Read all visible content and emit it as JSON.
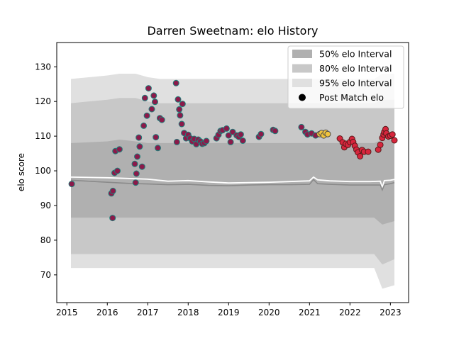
{
  "chart_data": {
    "type": "scatter",
    "title": "Darren Sweetnam: elo History",
    "xlabel": "",
    "ylabel": "elo score",
    "xlim": [
      2014.75,
      2023.45
    ],
    "ylim": [
      62,
      137
    ],
    "x_ticks": [
      2015,
      2016,
      2017,
      2018,
      2019,
      2020,
      2021,
      2022,
      2023
    ],
    "y_ticks": [
      70,
      80,
      90,
      100,
      110,
      120,
      130
    ],
    "grid": false,
    "legend_position": "top-right",
    "legend": [
      {
        "label": "50% elo Interval",
        "kind": "patch",
        "color": "#b0b0b0"
      },
      {
        "label": "80% elo Interval",
        "kind": "patch",
        "color": "#c8c8c8"
      },
      {
        "label": "95% elo Interval",
        "kind": "patch",
        "color": "#e0e0e0"
      },
      {
        "label": "Post Match elo",
        "kind": "marker",
        "color": "#000000"
      }
    ],
    "band_x": [
      2015.1,
      2016.0,
      2016.3,
      2016.7,
      2017.0,
      2017.3,
      2017.7,
      2018.0,
      2018.5,
      2019.0,
      2019.5,
      2020.0,
      2020.5,
      2020.9,
      2021.2,
      2021.5,
      2021.8,
      2022.0,
      2022.3,
      2022.6,
      2022.8,
      2023.1
    ],
    "band_95": {
      "lower": [
        72,
        72,
        72,
        72,
        72,
        72,
        72,
        72,
        72,
        72,
        72,
        72,
        72,
        72,
        72,
        72,
        72,
        72,
        72,
        72,
        66,
        67
      ],
      "upper": [
        126.5,
        127.5,
        128,
        128,
        127,
        126.5,
        126.5,
        126.5,
        126.5,
        126.5,
        126.5,
        126.5,
        126.5,
        126.5,
        126.5,
        126.5,
        126.5,
        126.5,
        126.5,
        126.5,
        128,
        128
      ]
    },
    "band_80": {
      "lower": [
        76,
        76,
        76,
        76,
        76,
        76,
        76,
        76,
        76,
        76,
        76,
        76,
        76,
        76,
        76,
        76,
        76,
        76,
        76,
        76,
        73,
        74.5
      ],
      "upper": [
        119.5,
        120.5,
        121,
        121,
        120,
        119.5,
        119.5,
        119.5,
        119.5,
        119.5,
        119.5,
        119.5,
        119.5,
        119.5,
        119.5,
        119.5,
        119.5,
        119.5,
        119.5,
        119.5,
        120.5,
        120.5
      ]
    },
    "band_50": {
      "lower": [
        86.5,
        86.5,
        86.5,
        86.5,
        86.5,
        86.5,
        86.5,
        86.5,
        86.5,
        86.5,
        86.5,
        86.5,
        86.5,
        86.5,
        86.5,
        86.5,
        86.5,
        86.5,
        86.5,
        86.5,
        84.5,
        85.5
      ],
      "upper": [
        108,
        108.5,
        109,
        108.5,
        108,
        108,
        108,
        108,
        108,
        108,
        108,
        108,
        108,
        108,
        108,
        108,
        108,
        108,
        108,
        108,
        109,
        109
      ]
    },
    "mean_line": {
      "x": [
        2015.1,
        2016.0,
        2016.5,
        2017.0,
        2017.5,
        2018.0,
        2018.5,
        2019.0,
        2019.5,
        2020.0,
        2020.5,
        2021.0,
        2021.1,
        2021.2,
        2021.5,
        2022.0,
        2022.5,
        2022.75,
        2022.8,
        2022.85,
        2023.0,
        2023.1
      ],
      "y": [
        98.2,
        98.0,
        97.8,
        97.6,
        97.0,
        97.2,
        96.8,
        96.5,
        96.6,
        96.7,
        96.9,
        97.1,
        98.2,
        97.4,
        97.1,
        96.9,
        96.9,
        97.0,
        95.2,
        97.2,
        97.3,
        97.5
      ]
    },
    "median_line": {
      "x": [
        2015.1,
        2016.0,
        2016.5,
        2017.0,
        2017.5,
        2018.0,
        2018.5,
        2019.0,
        2019.5,
        2020.0,
        2020.5,
        2021.0,
        2021.1,
        2021.2,
        2021.5,
        2022.0,
        2022.5,
        2022.75,
        2022.8,
        2022.85,
        2023.0,
        2023.1
      ],
      "y": [
        97.3,
        96.7,
        96.4,
        96.2,
        96.0,
        96.1,
        95.8,
        95.7,
        95.9,
        96.0,
        96.0,
        96.1,
        97.5,
        96.3,
        96.1,
        95.9,
        95.9,
        95.9,
        94.5,
        96.0,
        96.3,
        96.6
      ]
    },
    "series": [
      {
        "color": "#8b1a4a",
        "edge": "#1f7f7a",
        "x": [
          2015.12,
          2016.1,
          2016.13,
          2016.14,
          2016.18,
          2016.2,
          2016.25,
          2016.3,
          2016.68,
          2016.7,
          2016.72,
          2016.74,
          2016.78,
          2016.8,
          2016.86,
          2016.9,
          2016.93,
          2016.98,
          2017.02,
          2017.1,
          2017.15,
          2017.18,
          2017.2,
          2017.25,
          2017.3,
          2017.35,
          2017.7,
          2017.72,
          2017.75,
          2017.78,
          2017.8,
          2017.84,
          2017.86,
          2017.9,
          2017.95,
          2018.0,
          2018.05,
          2018.1,
          2018.15,
          2018.2,
          2018.25,
          2018.3,
          2018.35,
          2018.4,
          2018.45,
          2018.7,
          2018.75,
          2018.8,
          2018.85,
          2018.95,
          2019.0,
          2019.05,
          2019.1,
          2019.2,
          2019.25,
          2019.3,
          2019.35,
          2019.75,
          2019.8,
          2020.1,
          2020.15,
          2020.8,
          2020.9,
          2020.95,
          2021.05,
          2021.15
        ],
        "y": [
          96.2,
          93.5,
          86.4,
          94.2,
          99.4,
          105.7,
          100.0,
          106.2,
          102.0,
          96.6,
          99.2,
          104.1,
          109.6,
          107.0,
          101.2,
          113.0,
          121.0,
          115.9,
          123.8,
          117.8,
          121.7,
          119.9,
          109.7,
          106.6,
          115.2,
          114.7,
          125.3,
          108.3,
          120.6,
          117.7,
          116.0,
          113.5,
          119.3,
          110.9,
          109.4,
          110.4,
          109.4,
          108.5,
          109.2,
          107.7,
          109.0,
          108.5,
          107.8,
          108.0,
          108.6,
          109.4,
          110.4,
          111.5,
          111.7,
          112.2,
          110.2,
          108.3,
          111.2,
          110.2,
          109.8,
          110.5,
          108.7,
          109.8,
          110.6,
          111.8,
          111.5,
          112.6,
          111.2,
          110.5,
          110.8,
          110.2
        ]
      },
      {
        "color": "#f0c33c",
        "edge": "#4a4a4a",
        "x": [
          2021.25,
          2021.3,
          2021.35,
          2021.4,
          2021.45
        ],
        "y": [
          110.6,
          110.9,
          110.2,
          111.0,
          110.6
        ]
      },
      {
        "color": "#d7263d",
        "edge": "#5a1a1a",
        "x": [
          2021.75,
          2021.82,
          2021.86,
          2021.9,
          2021.95,
          2022.0,
          2022.05,
          2022.08,
          2022.12,
          2022.16,
          2022.2,
          2022.25,
          2022.3,
          2022.35,
          2022.45,
          2022.7,
          2022.75,
          2022.8,
          2022.83,
          2022.85,
          2022.88,
          2022.9,
          2022.95,
          2023.0,
          2023.05,
          2023.1
        ],
        "y": [
          109.3,
          108.2,
          106.8,
          107.8,
          107.5,
          108.3,
          109.2,
          108.3,
          107.2,
          106.1,
          105.3,
          104.2,
          106.0,
          105.5,
          105.5,
          106.1,
          107.5,
          109.5,
          110.5,
          111.2,
          112.0,
          110.8,
          109.9,
          110.1,
          110.5,
          108.8
        ]
      }
    ]
  }
}
